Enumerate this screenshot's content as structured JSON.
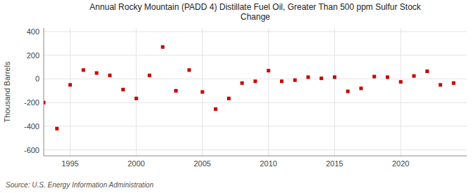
{
  "chart_data": {
    "type": "scatter",
    "title": "Annual Rocky Mountain (PADD 4) Distillate Fuel Oil, Greater Than 500 ppm Sulfur Stock\nChange",
    "ylabel": "Thousand Barrels",
    "source": "Source:  U.S. Energy Information Administration",
    "color": "#cc0000",
    "marker": "square",
    "grid": true,
    "xlim": [
      1993,
      2025
    ],
    "ylim": [
      -650,
      430
    ],
    "xticks": [
      1995,
      2000,
      2005,
      2010,
      2015,
      2020
    ],
    "yticks": [
      -600,
      -400,
      -200,
      0,
      200,
      400
    ],
    "x": [
      1993,
      1994,
      1995,
      1996,
      1997,
      1998,
      1999,
      2000,
      2001,
      2002,
      2003,
      2004,
      2005,
      2006,
      2007,
      2008,
      2009,
      2010,
      2011,
      2012,
      2013,
      2014,
      2015,
      2016,
      2017,
      2018,
      2019,
      2020,
      2021,
      2022,
      2023,
      2024
    ],
    "values": [
      -200,
      -420,
      -50,
      75,
      50,
      30,
      -90,
      -165,
      30,
      270,
      -100,
      75,
      -110,
      -255,
      -165,
      -35,
      -20,
      70,
      -20,
      -10,
      15,
      5,
      15,
      -105,
      -80,
      20,
      15,
      -25,
      25,
      65,
      -50,
      -35
    ]
  }
}
